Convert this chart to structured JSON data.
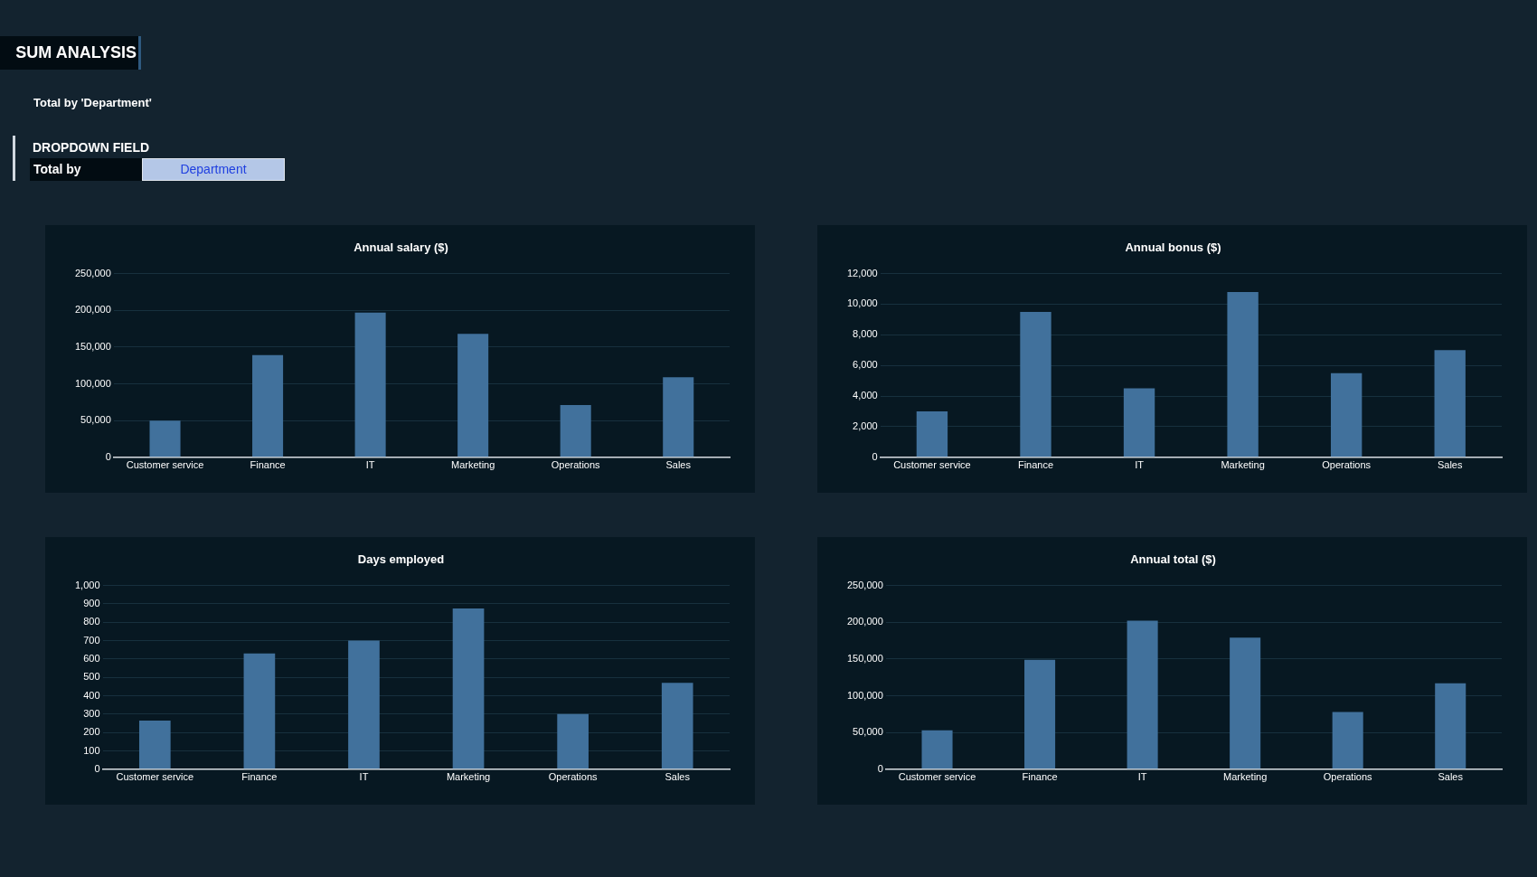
{
  "chart_data": [
    {
      "type": "other",
      "title": "SUM ANALYSIS",
      "subtitle": "Total by 'Department'",
      "annotations": [
        "DROPDOWN FIELD",
        "Total by",
        "Department"
      ]
    },
    {
      "type": "bar",
      "title": "Annual salary ($)",
      "categories": [
        "Customer service",
        "Finance",
        "IT",
        "Marketing",
        "Operations",
        "Sales"
      ],
      "values": [
        50000,
        139000,
        197000,
        168000,
        71000,
        109000
      ],
      "color": "#41719c",
      "ylim": [
        0,
        250000
      ],
      "yticks": [
        0,
        {
          "value": 50000,
          "label": "50,000"
        },
        {
          "value": 100000,
          "label": "100,000"
        },
        {
          "value": 150000,
          "label": "150,000"
        },
        {
          "value": 200000,
          "label": "200,000"
        },
        {
          "value": 250000,
          "label": "250,000"
        }
      ],
      "grid": "y"
    },
    {
      "type": "bar",
      "title": "Annual bonus ($)",
      "categories": [
        "Customer service",
        "Finance",
        "IT",
        "Marketing",
        "Operations",
        "Sales"
      ],
      "values": [
        3000,
        9500,
        4500,
        10800,
        5500,
        7000
      ],
      "color": "#41719c",
      "ylim": [
        0,
        12000
      ],
      "yticks": [
        0,
        {
          "value": 2000,
          "label": "2,000"
        },
        {
          "value": 4000,
          "label": "4,000"
        },
        {
          "value": 6000,
          "label": "6,000"
        },
        {
          "value": 8000,
          "label": "8,000"
        },
        {
          "value": 10000,
          "label": "10,000"
        },
        {
          "value": 12000,
          "label": "12,000"
        }
      ],
      "grid": "y"
    },
    {
      "type": "bar",
      "title": "Days employed",
      "categories": [
        "Customer service",
        "Finance",
        "IT",
        "Marketing",
        "Operations",
        "Sales"
      ],
      "values": [
        265,
        630,
        700,
        875,
        300,
        470
      ],
      "color": "#41719c",
      "ylim": [
        0,
        1000
      ],
      "yticks": [
        0,
        100,
        200,
        300,
        400,
        500,
        600,
        700,
        800,
        900,
        {
          "value": 1000,
          "label": "1,000"
        }
      ],
      "grid": "y"
    },
    {
      "type": "bar",
      "title": "Annual total ($)",
      "categories": [
        "Customer service",
        "Finance",
        "IT",
        "Marketing",
        "Operations",
        "Sales"
      ],
      "values": [
        53000,
        149000,
        202000,
        179000,
        78000,
        117000
      ],
      "color": "#41719c",
      "ylim": [
        0,
        250000
      ],
      "yticks": [
        0,
        {
          "value": 50000,
          "label": "50,000"
        },
        {
          "value": 100000,
          "label": "100,000"
        },
        {
          "value": 150000,
          "label": "150,000"
        },
        {
          "value": 200000,
          "label": "200,000"
        },
        {
          "value": 250000,
          "label": "250,000"
        }
      ],
      "grid": "y"
    }
  ]
}
